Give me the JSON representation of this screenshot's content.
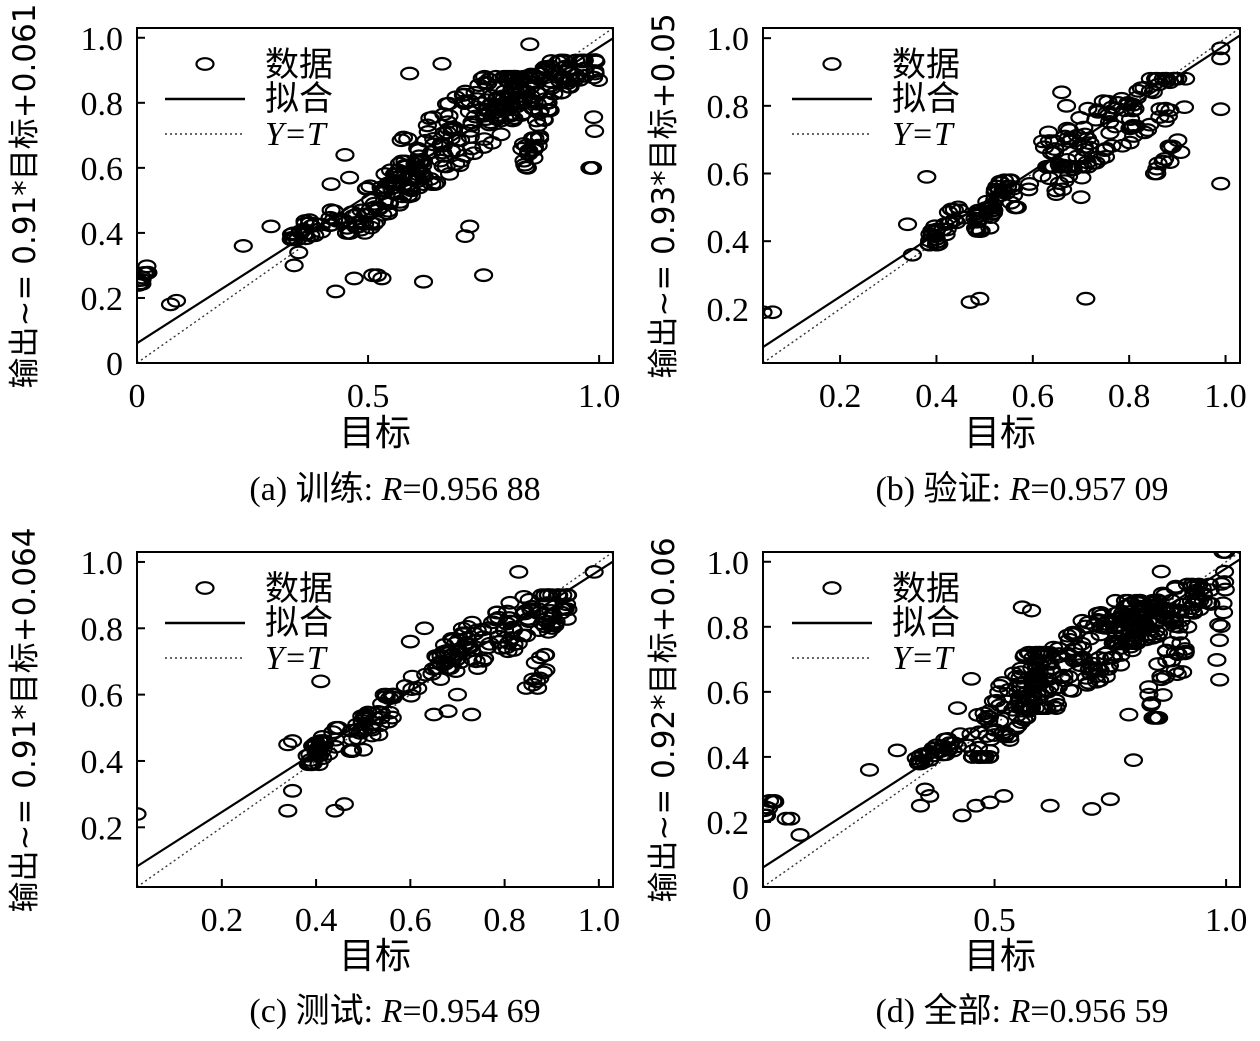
{
  "chart_data": [
    {
      "type": "scatter",
      "ylabel": "输出~= 0.91*目标+0.061",
      "xlabel": "目标",
      "caption_prefix": "(a) ",
      "caption_cn": "训练",
      "caption_colon": ": ",
      "caption_r": "R",
      "caption_value": "=0.956 88",
      "xlim": [
        0,
        1.03
      ],
      "ylim": [
        0,
        1.03
      ],
      "xticks": [
        {
          "v": 0,
          "label": "0"
        },
        {
          "v": 0.5,
          "label": "0.5"
        },
        {
          "v": 1.0,
          "label": "1.0"
        }
      ],
      "yticks": [
        {
          "v": 0,
          "label": "0"
        },
        {
          "v": 0.2,
          "label": "0.2"
        },
        {
          "v": 0.4,
          "label": "0.4"
        },
        {
          "v": 0.6,
          "label": "0.6"
        },
        {
          "v": 0.8,
          "label": "0.8"
        },
        {
          "v": 1.0,
          "label": "1.0"
        }
      ],
      "fit": {
        "slope": 0.91,
        "intercept": 0.061
      },
      "legend": {
        "data": "数据",
        "fit": "拟合",
        "yt": "Y=T"
      },
      "seed": 11,
      "clusters": [
        {
          "n": 10,
          "x": [
            0.0,
            0.03
          ],
          "y": [
            0.24,
            0.3
          ]
        },
        {
          "n": 2,
          "x": [
            0.07,
            0.09
          ],
          "y": [
            0.16,
            0.23
          ]
        },
        {
          "n": 30,
          "x": [
            0.33,
            0.45
          ],
          "y": [
            0.38,
            0.47
          ]
        },
        {
          "n": 90,
          "x": [
            0.45,
            0.62
          ],
          "y": [
            0.4,
            0.62
          ]
        },
        {
          "n": 140,
          "x": [
            0.55,
            0.85
          ],
          "y": [
            0.55,
            0.88
          ]
        },
        {
          "n": 90,
          "x": [
            0.75,
            0.97
          ],
          "y": [
            0.75,
            0.93
          ]
        },
        {
          "n": 30,
          "x": [
            0.83,
            0.9
          ],
          "y": [
            0.6,
            0.8
          ]
        },
        {
          "n": 12,
          "x": [
            0.98,
            1.0
          ],
          "y": [
            0.6,
            1.02
          ]
        }
      ],
      "points": [
        [
          0.23,
          0.36
        ],
        [
          0.29,
          0.42
        ],
        [
          0.34,
          0.38
        ],
        [
          0.34,
          0.3
        ],
        [
          0.35,
          0.34
        ],
        [
          0.43,
          0.22
        ],
        [
          0.47,
          0.26
        ],
        [
          0.51,
          0.27
        ],
        [
          0.52,
          0.27
        ],
        [
          0.53,
          0.26
        ],
        [
          0.62,
          0.25
        ],
        [
          0.71,
          0.39
        ],
        [
          0.72,
          0.42
        ],
        [
          0.75,
          0.27
        ],
        [
          0.85,
          0.98
        ],
        [
          0.59,
          0.89
        ],
        [
          0.66,
          0.92
        ],
        [
          0.45,
          0.64
        ],
        [
          0.46,
          0.57
        ],
        [
          0.42,
          0.55
        ]
      ]
    },
    {
      "type": "scatter",
      "ylabel": "输出~= 0.93*目标+0.05",
      "xlabel": "目标",
      "caption_prefix": "(b) ",
      "caption_cn": "验证",
      "caption_colon": ": ",
      "caption_r": "R",
      "caption_value": "=0.957 09",
      "xlim": [
        0.04,
        1.03
      ],
      "ylim": [
        0.04,
        1.03
      ],
      "xticks": [
        {
          "v": 0.2,
          "label": "0.2"
        },
        {
          "v": 0.4,
          "label": "0.4"
        },
        {
          "v": 0.6,
          "label": "0.6"
        },
        {
          "v": 0.8,
          "label": "0.8"
        },
        {
          "v": 1.0,
          "label": "1.0"
        }
      ],
      "yticks": [
        {
          "v": 0.2,
          "label": "0.2"
        },
        {
          "v": 0.4,
          "label": "0.4"
        },
        {
          "v": 0.6,
          "label": "0.6"
        },
        {
          "v": 0.8,
          "label": "0.8"
        },
        {
          "v": 1.0,
          "label": "1.0"
        }
      ],
      "fit": {
        "slope": 0.93,
        "intercept": 0.05
      },
      "legend": {
        "data": "数据",
        "fit": "拟合",
        "yt": "Y=T"
      },
      "seed": 23,
      "clusters": [
        {
          "n": 30,
          "x": [
            0.38,
            0.46
          ],
          "y": [
            0.39,
            0.5
          ]
        },
        {
          "n": 45,
          "x": [
            0.48,
            0.56
          ],
          "y": [
            0.43,
            0.58
          ]
        },
        {
          "n": 110,
          "x": [
            0.62,
            0.92
          ],
          "y": [
            0.62,
            0.88
          ]
        },
        {
          "n": 20,
          "x": [
            0.55,
            0.72
          ],
          "y": [
            0.5,
            0.65
          ]
        },
        {
          "n": 10,
          "x": [
            0.85,
            0.92
          ],
          "y": [
            0.6,
            0.72
          ]
        }
      ],
      "points": [
        [
          0.04,
          0.19
        ],
        [
          0.06,
          0.19
        ],
        [
          0.34,
          0.45
        ],
        [
          0.35,
          0.36
        ],
        [
          0.38,
          0.59
        ],
        [
          0.42,
          0.42
        ],
        [
          0.47,
          0.22
        ],
        [
          0.49,
          0.23
        ],
        [
          0.71,
          0.23
        ],
        [
          0.7,
          0.53
        ],
        [
          0.67,
          0.8
        ],
        [
          0.66,
          0.84
        ],
        [
          0.99,
          0.57
        ],
        [
          0.99,
          0.79
        ],
        [
          0.99,
          0.97
        ],
        [
          0.99,
          0.94
        ],
        [
          0.89,
          0.68
        ],
        [
          0.86,
          0.63
        ],
        [
          0.76,
          0.72
        ],
        [
          0.85,
          0.84
        ]
      ]
    },
    {
      "type": "scatter",
      "ylabel": "输出~= 0.91*目标+0.064",
      "xlabel": "目标",
      "caption_prefix": "(c) ",
      "caption_cn": "测试",
      "caption_colon": ": ",
      "caption_r": "R",
      "caption_value": "=0.954 69",
      "xlim": [
        0.02,
        1.03
      ],
      "ylim": [
        0.02,
        1.03
      ],
      "xticks": [
        {
          "v": 0.2,
          "label": "0.2"
        },
        {
          "v": 0.4,
          "label": "0.4"
        },
        {
          "v": 0.6,
          "label": "0.6"
        },
        {
          "v": 0.8,
          "label": "0.8"
        },
        {
          "v": 1.0,
          "label": "1.0"
        }
      ],
      "yticks": [
        {
          "v": 0.2,
          "label": "0.2"
        },
        {
          "v": 0.4,
          "label": "0.4"
        },
        {
          "v": 0.6,
          "label": "0.6"
        },
        {
          "v": 0.8,
          "label": "0.8"
        },
        {
          "v": 1.0,
          "label": "1.0"
        }
      ],
      "fit": {
        "slope": 0.91,
        "intercept": 0.064
      },
      "legend": {
        "data": "数据",
        "fit": "拟合",
        "yt": "Y=T"
      },
      "seed": 37,
      "clusters": [
        {
          "n": 35,
          "x": [
            0.38,
            0.46
          ],
          "y": [
            0.39,
            0.5
          ]
        },
        {
          "n": 45,
          "x": [
            0.47,
            0.57
          ],
          "y": [
            0.43,
            0.6
          ]
        },
        {
          "n": 120,
          "x": [
            0.65,
            0.94
          ],
          "y": [
            0.68,
            0.9
          ]
        },
        {
          "n": 15,
          "x": [
            0.57,
            0.7
          ],
          "y": [
            0.58,
            0.72
          ]
        },
        {
          "n": 10,
          "x": [
            0.83,
            0.9
          ],
          "y": [
            0.62,
            0.72
          ]
        }
      ],
      "points": [
        [
          0.02,
          0.24
        ],
        [
          0.34,
          0.45
        ],
        [
          0.35,
          0.46
        ],
        [
          0.35,
          0.31
        ],
        [
          0.34,
          0.25
        ],
        [
          0.44,
          0.25
        ],
        [
          0.46,
          0.27
        ],
        [
          0.41,
          0.64
        ],
        [
          0.65,
          0.54
        ],
        [
          0.68,
          0.55
        ],
        [
          0.7,
          0.6
        ],
        [
          0.73,
          0.54
        ],
        [
          0.87,
          0.62
        ],
        [
          0.86,
          0.63
        ],
        [
          0.99,
          0.97
        ],
        [
          0.83,
          0.97
        ],
        [
          0.63,
          0.8
        ],
        [
          0.6,
          0.76
        ]
      ]
    },
    {
      "type": "scatter",
      "ylabel": "输出~= 0.92*目标+0.06",
      "xlabel": "目标",
      "caption_prefix": "(d) ",
      "caption_cn": "全部",
      "caption_colon": ": ",
      "caption_r": "R",
      "caption_value": "=0.956 59",
      "xlim": [
        0,
        1.03
      ],
      "ylim": [
        0,
        1.03
      ],
      "xticks": [
        {
          "v": 0,
          "label": "0"
        },
        {
          "v": 0.5,
          "label": "0.5"
        },
        {
          "v": 1.0,
          "label": "1.0"
        }
      ],
      "yticks": [
        {
          "v": 0,
          "label": "0"
        },
        {
          "v": 0.2,
          "label": "0.2"
        },
        {
          "v": 0.4,
          "label": "0.4"
        },
        {
          "v": 0.6,
          "label": "0.6"
        },
        {
          "v": 0.8,
          "label": "0.8"
        },
        {
          "v": 1.0,
          "label": "1.0"
        }
      ],
      "fit": {
        "slope": 0.92,
        "intercept": 0.06
      },
      "legend": {
        "data": "数据",
        "fit": "拟合",
        "yt": "Y=T"
      },
      "seed": 53,
      "clusters": [
        {
          "n": 10,
          "x": [
            0.0,
            0.03
          ],
          "y": [
            0.22,
            0.3
          ]
        },
        {
          "n": 35,
          "x": [
            0.33,
            0.45
          ],
          "y": [
            0.38,
            0.47
          ]
        },
        {
          "n": 100,
          "x": [
            0.45,
            0.62
          ],
          "y": [
            0.4,
            0.72
          ]
        },
        {
          "n": 160,
          "x": [
            0.55,
            0.85
          ],
          "y": [
            0.55,
            0.88
          ]
        },
        {
          "n": 100,
          "x": [
            0.75,
            0.97
          ],
          "y": [
            0.75,
            0.93
          ]
        },
        {
          "n": 30,
          "x": [
            0.83,
            0.92
          ],
          "y": [
            0.52,
            0.8
          ]
        },
        {
          "n": 14,
          "x": [
            0.98,
            1.0
          ],
          "y": [
            0.58,
            1.03
          ]
        }
      ],
      "points": [
        [
          0.08,
          0.16
        ],
        [
          0.05,
          0.21
        ],
        [
          0.06,
          0.21
        ],
        [
          0.23,
          0.36
        ],
        [
          0.29,
          0.42
        ],
        [
          0.34,
          0.25
        ],
        [
          0.35,
          0.3
        ],
        [
          0.36,
          0.28
        ],
        [
          0.43,
          0.22
        ],
        [
          0.46,
          0.25
        ],
        [
          0.49,
          0.26
        ],
        [
          0.52,
          0.28
        ],
        [
          0.62,
          0.25
        ],
        [
          0.71,
          0.24
        ],
        [
          0.75,
          0.27
        ],
        [
          0.8,
          0.39
        ],
        [
          0.79,
          0.53
        ],
        [
          0.86,
          0.97
        ],
        [
          0.85,
          0.88
        ],
        [
          0.45,
          0.64
        ],
        [
          0.42,
          0.55
        ],
        [
          0.56,
          0.86
        ],
        [
          0.58,
          0.85
        ]
      ]
    }
  ]
}
